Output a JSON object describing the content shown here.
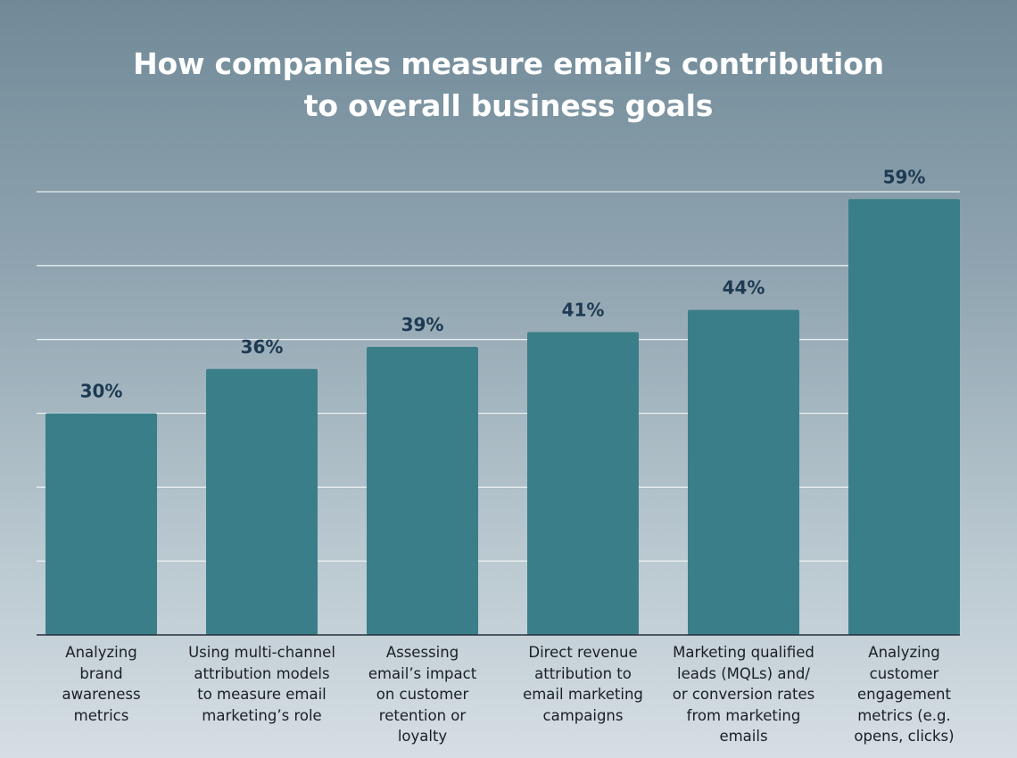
{
  "chart_data": {
    "type": "bar",
    "title_lines": [
      "How companies measure email’s contribution",
      "to overall business goals"
    ],
    "categories": [
      [
        "Analyzing",
        "brand",
        "awareness",
        "metrics"
      ],
      [
        "Using multi-channel",
        "attribution models",
        "to measure email",
        "marketing’s role"
      ],
      [
        "Assessing",
        "email’s impact",
        "on customer",
        "retention or",
        "loyalty"
      ],
      [
        "Direct revenue",
        "attribution to",
        "email marketing",
        "campaigns"
      ],
      [
        "Marketing qualified",
        "leads (MQLs) and/",
        "or conversion rates",
        "from marketing",
        "emails"
      ],
      [
        "Analyzing",
        "customer",
        "engagement",
        "metrics (e.g.",
        "opens, clicks)"
      ]
    ],
    "values": [
      30,
      36,
      39,
      41,
      44,
      59
    ],
    "value_labels": [
      "30%",
      "36%",
      "39%",
      "41%",
      "44%",
      "59%"
    ],
    "ylim": [
      0,
      60
    ],
    "gridlines": [
      10,
      20,
      30,
      40,
      50,
      60
    ],
    "grid": true,
    "legend": false,
    "colors": {
      "bar": "#3a7e89",
      "grid": "#e9eef1",
      "axis": "#24313a",
      "value_label": "#1d3a52",
      "title": "#ffffff"
    }
  }
}
